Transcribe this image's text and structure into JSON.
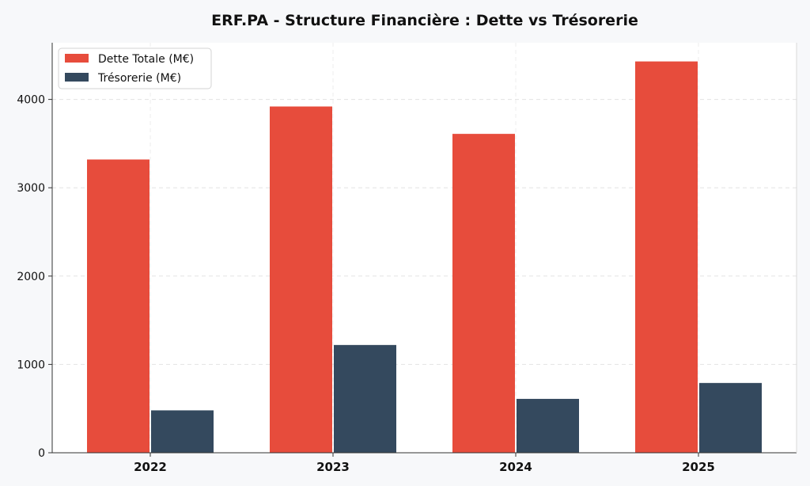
{
  "chart_data": {
    "type": "bar",
    "title": "ERF.PA - Structure Financière : Dette vs Trésorerie",
    "categories": [
      "2022",
      "2023",
      "2024",
      "2025"
    ],
    "series": [
      {
        "name": "Dette Totale (M€)",
        "color": "#e74c3c",
        "values": [
          3320,
          3920,
          3610,
          4430
        ]
      },
      {
        "name": "Trésorerie (M€)",
        "color": "#34495e",
        "values": [
          480,
          1220,
          610,
          790
        ]
      }
    ],
    "yticks": [
      0,
      1000,
      2000,
      3000,
      4000
    ],
    "ylim": [
      0,
      4650
    ],
    "grid": true,
    "legend_position": "top-left"
  }
}
